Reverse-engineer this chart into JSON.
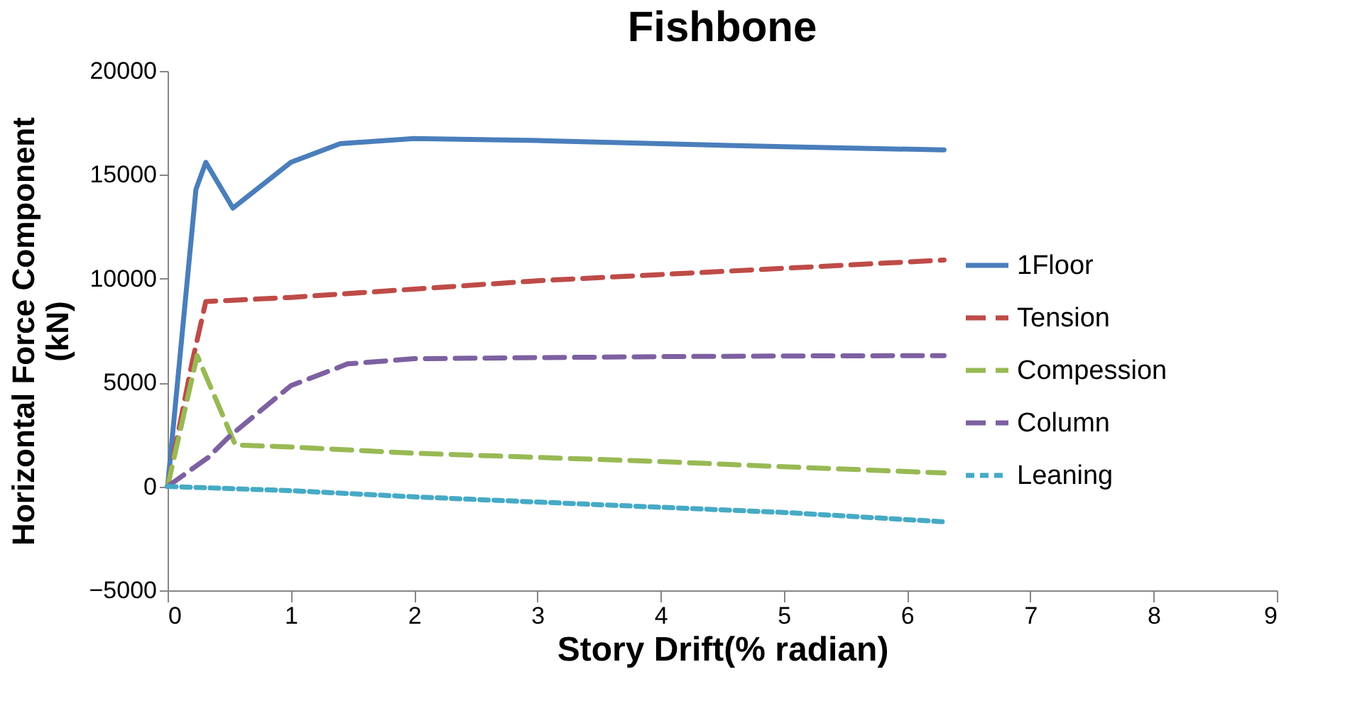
{
  "chart_data": {
    "type": "line",
    "title": "Fishbone",
    "xlabel": "Story Drift(% radian)",
    "ylabel": "Horizontal Force Component\n(kN)",
    "xlim": [
      0,
      9
    ],
    "xticks": [
      0,
      1,
      2,
      3,
      4,
      5,
      6,
      7,
      8,
      9
    ],
    "ylim": [
      -5000,
      20000
    ],
    "yticks": [
      -5000,
      0,
      5000,
      10000,
      15000,
      20000
    ],
    "grid": false,
    "legend": "right",
    "marker": "none",
    "series": [
      {
        "name": "1Floor",
        "color": "#4a7ebb",
        "line_style": "solid",
        "x": [
          0,
          0.23,
          0.31,
          0.53,
          1.0,
          1.4,
          2,
          3,
          4,
          5,
          6.3
        ],
        "values": [
          0,
          14300,
          15600,
          13400,
          15600,
          16500,
          16750,
          16650,
          16500,
          16350,
          16200
        ]
      },
      {
        "name": "Tension",
        "color": "#be4b48",
        "line_style": "dashed",
        "x": [
          0,
          0.2,
          0.31,
          1,
          2,
          3,
          4,
          5,
          6.3
        ],
        "values": [
          0,
          6000,
          8900,
          9100,
          9500,
          9900,
          10200,
          10500,
          10900
        ]
      },
      {
        "name": "Compession",
        "color": "#98b954",
        "line_style": "dashed",
        "x": [
          0,
          0.24,
          0.55,
          1,
          2,
          3,
          4,
          5,
          6.3
        ],
        "values": [
          0,
          6300,
          2000,
          1900,
          1600,
          1400,
          1200,
          950,
          650
        ]
      },
      {
        "name": "Column",
        "color": "#7d60a0",
        "line_style": "dashed",
        "x": [
          0,
          0.33,
          0.5,
          1.0,
          1.46,
          2,
          3,
          4,
          5,
          6.3
        ],
        "values": [
          0,
          1400,
          2400,
          4850,
          5900,
          6150,
          6200,
          6250,
          6280,
          6300
        ]
      },
      {
        "name": "Leaning",
        "color": "#46aac5",
        "line_style": "dotted",
        "x": [
          0,
          1,
          2,
          3,
          4,
          5,
          6.3
        ],
        "values": [
          0,
          -200,
          -500,
          -750,
          -1000,
          -1250,
          -1700
        ]
      }
    ]
  }
}
